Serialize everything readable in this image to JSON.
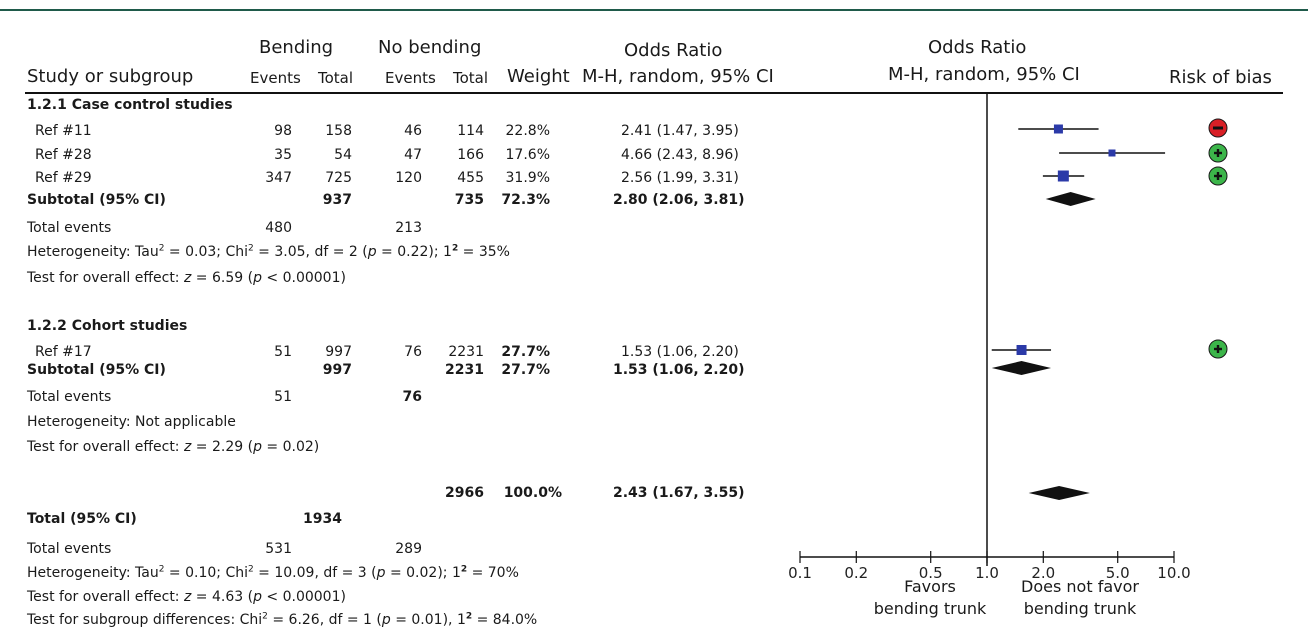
{
  "headers": {
    "bending": "Bending",
    "no_bending": "No bending",
    "odds_ratio": "Odds Ratio",
    "method": "M-H, random, 95% CI",
    "study": "Study or subgroup",
    "events": "Events",
    "total": "Total",
    "weight": "Weight",
    "risk_of_bias": "Risk of bias"
  },
  "group1": {
    "title": "1.2.1 Case control studies",
    "rows": [
      {
        "study": "Ref #11",
        "b_events": "98",
        "b_total": "158",
        "n_events": "46",
        "n_total": "114",
        "weight": "22.8%",
        "ci": "2.41 (1.47, 3.95)",
        "bias": "high"
      },
      {
        "study": "Ref #28",
        "b_events": "35",
        "b_total": "54",
        "n_events": "47",
        "n_total": "166",
        "weight": "17.6%",
        "ci": "4.66 (2.43, 8.96)",
        "bias": "low"
      },
      {
        "study": "Ref #29",
        "b_events": "347",
        "b_total": "725",
        "n_events": "120",
        "n_total": "455",
        "weight": "31.9%",
        "ci": "2.56 (1.99, 3.31)",
        "bias": "low"
      }
    ],
    "subtotal": {
      "label": "Subtotal (95% CI)",
      "b_total": "937",
      "n_total": "735",
      "weight": "72.3%",
      "ci": "2.80 (2.06, 3.81)"
    },
    "total_events": {
      "label": "Total events",
      "b": "480",
      "n": "213"
    },
    "het": {
      "prefix": "Heterogeneity: Tau",
      "tau": " = 0.03; Chi",
      "chi": " = 3.05, df = 2 (",
      "p": "p",
      "pval": " = 0.22); ",
      "i": "1",
      "ival": " = 35%"
    },
    "overall": {
      "prefix": "Test for overall effect: ",
      "z": "z",
      "zval": " = 6.59 (",
      "p": "p",
      "pval": " < 0.00001)"
    }
  },
  "group2": {
    "title": "1.2.2 Cohort studies",
    "rows": [
      {
        "study": "Ref #17",
        "b_events": "51",
        "b_total": "997",
        "n_events": "76",
        "n_total": "2231",
        "weight": "27.7%",
        "ci": "1.53 (1.06, 2.20)",
        "bias": "low"
      }
    ],
    "subtotal": {
      "label": "Subtotal (95% CI)",
      "b_total": "997",
      "n_total": "2231",
      "weight": "27.7%",
      "ci": "1.53 (1.06, 2.20)"
    },
    "total_events": {
      "label": "Total events",
      "b": "51",
      "n": "76"
    },
    "het": "Heterogeneity: Not applicable",
    "overall": {
      "prefix": "Test for overall effect: ",
      "z": "z",
      "zval": " = 2.29 (",
      "p": "p",
      "pval": " = 0.02)"
    }
  },
  "overall": {
    "label": "Total (95% CI)",
    "b_total": "1934",
    "n_total": "2966",
    "weight": "100.0%",
    "ci": "2.43 (1.67, 3.55)",
    "total_events": {
      "label": "Total events",
      "b": "531",
      "n": "289"
    },
    "het": {
      "prefix": "Heterogeneity: Tau",
      "tau": " = 0.10; Chi",
      "chi": " = 10.09, df = 3 (",
      "p": "p",
      "pval": " = 0.02); ",
      "i": "1",
      "ival": " = 70%"
    },
    "overall": {
      "prefix": "Test for overall effect: ",
      "z": "z",
      "zval": " = 4.63 (",
      "p": "p",
      "pval": " < 0.00001)"
    },
    "subgroup": {
      "prefix": "Test for subgroup differences: Chi",
      "chi": " = 6.26, df = 1 (",
      "p": "p",
      "pval": " = 0.01), ",
      "i": "1",
      "ival": " = 84.0%"
    }
  },
  "sup2": "2",
  "favors": {
    "left1": "Favors",
    "left2": "bending trunk",
    "right1": "Does not favor",
    "right2": "bending trunk"
  },
  "colors": {
    "square": "#2b3aa8",
    "diamond": "#111111",
    "high_bias": "#d81f26",
    "low_bias": "#3cb54a"
  },
  "chart_data": {
    "type": "forest",
    "scale": "log",
    "xlim": [
      0.1,
      10.0
    ],
    "null_value": 1.0,
    "ticks": [
      "0.1",
      "0.2",
      "0.5",
      "1.0",
      "2.0",
      "5.0",
      "10.0"
    ],
    "studies": [
      {
        "name": "Ref #11",
        "or": 2.41,
        "lo": 1.47,
        "hi": 3.95,
        "weight": 22.8,
        "bias": "high"
      },
      {
        "name": "Ref #28",
        "or": 4.66,
        "lo": 2.43,
        "hi": 8.96,
        "weight": 17.6,
        "bias": "low"
      },
      {
        "name": "Ref #29",
        "or": 2.56,
        "lo": 1.99,
        "hi": 3.31,
        "weight": 31.9,
        "bias": "low"
      },
      {
        "name": "Ref #17",
        "or": 1.53,
        "lo": 1.06,
        "hi": 2.2,
        "weight": 27.7,
        "bias": "low"
      }
    ],
    "pooled": [
      {
        "name": "Subtotal 1.2.1",
        "or": 2.8,
        "lo": 2.06,
        "hi": 3.81
      },
      {
        "name": "Subtotal 1.2.2",
        "or": 1.53,
        "lo": 1.06,
        "hi": 2.2
      },
      {
        "name": "Total",
        "or": 2.43,
        "lo": 1.67,
        "hi": 3.55
      }
    ]
  }
}
